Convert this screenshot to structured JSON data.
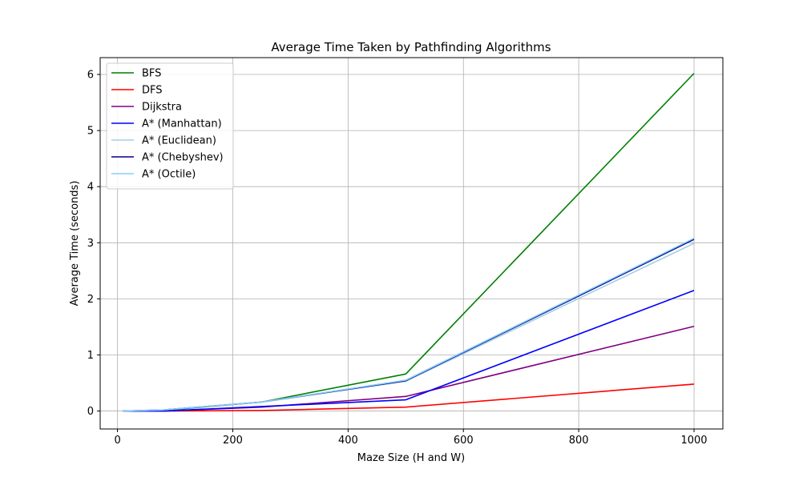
{
  "chart_data": {
    "type": "line",
    "title": "Average Time Taken by Pathfinding Algorithms",
    "xlabel": "Maze Size (H and W)",
    "ylabel": "Average Time (seconds)",
    "x": [
      10,
      80,
      250,
      500,
      1000
    ],
    "xlim": [
      -30,
      1050
    ],
    "ylim": [
      -0.32,
      6.3
    ],
    "xticks": [
      0,
      200,
      400,
      600,
      800,
      1000
    ],
    "yticks": [
      0,
      1,
      2,
      3,
      4,
      5,
      6
    ],
    "grid": true,
    "legend_position": "top-left",
    "series": [
      {
        "name": "BFS",
        "color": "#008000",
        "values": [
          0.0,
          0.01,
          0.16,
          0.66,
          6.02
        ]
      },
      {
        "name": "DFS",
        "color": "#ff0000",
        "values": [
          0.0,
          0.0,
          0.01,
          0.07,
          0.48
        ]
      },
      {
        "name": "Dijkstra",
        "color": "#800080",
        "values": [
          0.0,
          0.0,
          0.07,
          0.26,
          1.51
        ]
      },
      {
        "name": "A* (Manhattan)",
        "color": "#0000ff",
        "values": [
          0.0,
          0.0,
          0.08,
          0.2,
          2.15
        ]
      },
      {
        "name": "A* (Euclidean)",
        "color": "#a6cee3",
        "values": [
          0.0,
          0.02,
          0.16,
          0.53,
          2.99
        ]
      },
      {
        "name": "A* (Chebyshev)",
        "color": "#00008b",
        "values": [
          0.0,
          0.02,
          0.16,
          0.54,
          3.06
        ]
      },
      {
        "name": "A* (Octile)",
        "color": "#87cefa",
        "values": [
          0.0,
          0.02,
          0.16,
          0.55,
          3.08
        ]
      }
    ]
  }
}
